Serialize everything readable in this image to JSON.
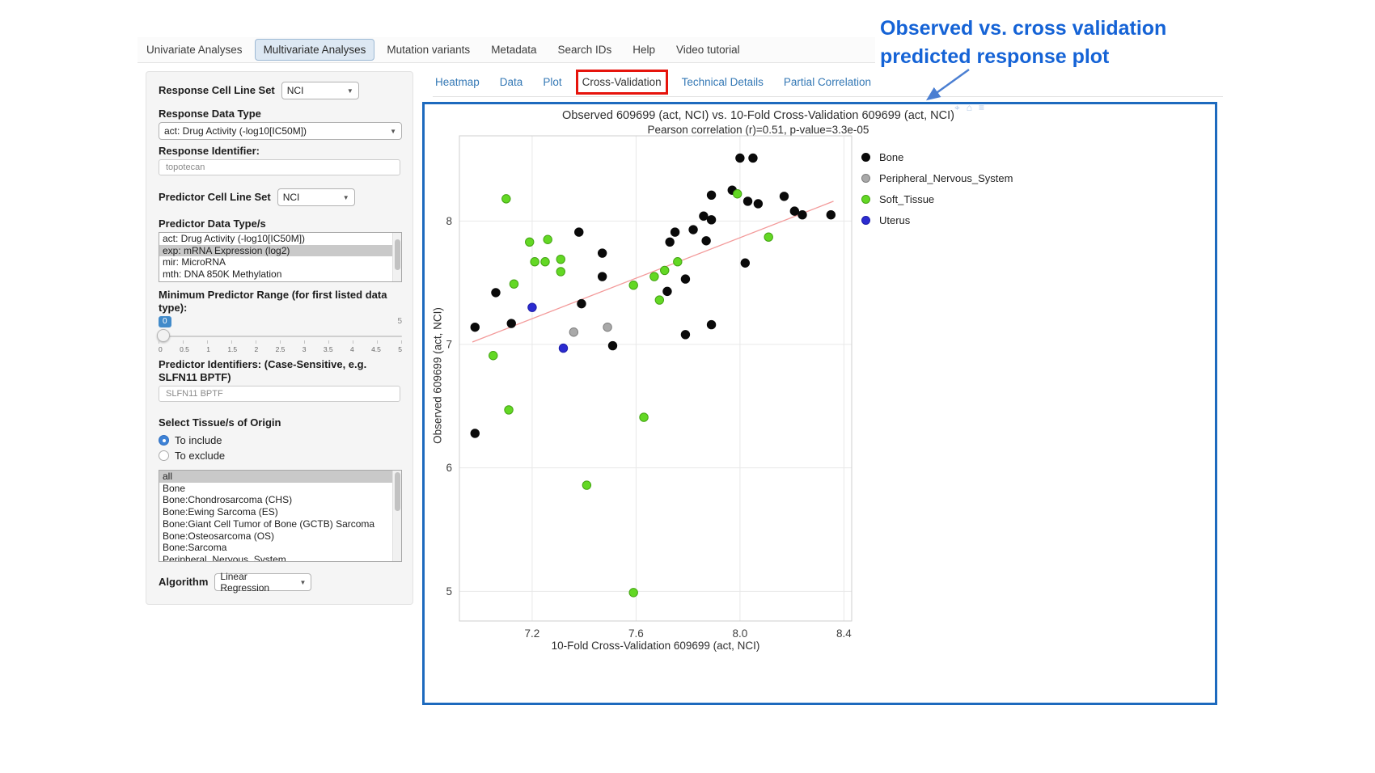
{
  "annotation": {
    "line1": "Observed vs. cross validation",
    "line2": "predicted response plot",
    "color": "#1563d6"
  },
  "navbar": {
    "tabs": [
      {
        "label": "Univariate Analyses",
        "active": false
      },
      {
        "label": "Multivariate Analyses",
        "active": true
      },
      {
        "label": "Mutation variants",
        "active": false
      },
      {
        "label": "Metadata",
        "active": false
      },
      {
        "label": "Search IDs",
        "active": false
      },
      {
        "label": "Help",
        "active": false
      },
      {
        "label": "Video tutorial",
        "active": false
      }
    ]
  },
  "sidebar": {
    "response_cell_line_set": {
      "label": "Response Cell Line Set",
      "value": "NCI"
    },
    "response_data_type": {
      "label": "Response Data Type",
      "value": "act: Drug Activity (-log10[IC50M])"
    },
    "response_identifier": {
      "label": "Response Identifier:",
      "value": "topotecan"
    },
    "predictor_cell_line_set": {
      "label": "Predictor Cell Line Set",
      "value": "NCI"
    },
    "predictor_data_types": {
      "label": "Predictor Data Type/s",
      "options": [
        "act: Drug Activity (-log10[IC50M])",
        "exp: mRNA Expression (log2)",
        "mir: MicroRNA",
        "mth: DNA 850K Methylation"
      ],
      "selected": "exp: mRNA Expression (log2)"
    },
    "min_predictor_range": {
      "label": "Minimum Predictor Range (for first listed data type):",
      "value": "0",
      "max_label": "5",
      "ticks": [
        "0",
        "0.5",
        "1",
        "1.5",
        "2",
        "2.5",
        "3",
        "3.5",
        "4",
        "4.5",
        "5"
      ]
    },
    "predictor_identifiers": {
      "label": "Predictor Identifiers: (Case-Sensitive, e.g. SLFN11 BPTF)",
      "value": "SLFN11 BPTF"
    },
    "tissue_origin": {
      "label": "Select Tissue/s of Origin",
      "radios": [
        {
          "label": "To include",
          "checked": true
        },
        {
          "label": "To exclude",
          "checked": false
        }
      ],
      "options": [
        "all",
        "Bone",
        "Bone:Chondrosarcoma (CHS)",
        "Bone:Ewing Sarcoma (ES)",
        "Bone:Giant Cell Tumor of Bone (GCTB) Sarcoma",
        "Bone:Osteosarcoma (OS)",
        "Bone:Sarcoma",
        "Peripheral_Nervous_System"
      ],
      "selected": "all"
    },
    "algorithm": {
      "label": "Algorithm",
      "value": "Linear Regression"
    }
  },
  "content_tabs": {
    "active": "Cross-Validation",
    "tabs": [
      {
        "label": "Heatmap"
      },
      {
        "label": "Data"
      },
      {
        "label": "Plot"
      },
      {
        "label": "Cross-Validation"
      },
      {
        "label": "Technical Details"
      },
      {
        "label": "Partial Correlation"
      }
    ]
  },
  "modebar": {
    "icons": [
      {
        "name": "crosshair-icon",
        "glyph": "⌖"
      },
      {
        "name": "home-icon",
        "glyph": "⌂"
      },
      {
        "name": "menu-icon",
        "glyph": "≡"
      }
    ]
  },
  "chart_data": {
    "type": "scatter",
    "title": "Observed 609699 (act, NCI) vs. 10-Fold Cross-Validation 609699 (act, NCI)",
    "subtitle": "Pearson correlation (r)=0.51, p-value=3.3e-05",
    "xlabel": "10-Fold Cross-Validation 609699 (act, NCI)",
    "ylabel": "Observed 609699 (act, NCI)",
    "xlim": [
      6.92,
      8.43
    ],
    "ylim": [
      4.76,
      8.69
    ],
    "x_ticks": [
      7.2,
      7.6,
      8.0,
      8.4
    ],
    "x_tick_labels": [
      "7.2",
      "7.6",
      "8.0",
      "8.4"
    ],
    "y_ticks": [
      5,
      6,
      7,
      8
    ],
    "y_tick_labels": [
      "5",
      "6",
      "7",
      "8"
    ],
    "grid": true,
    "legend_position": "right",
    "pearson_r": 0.51,
    "p_value": "3.3e-05",
    "trendline": {
      "color": "#f39a9a",
      "x": [
        6.97,
        8.36
      ],
      "y": [
        7.02,
        8.16
      ]
    },
    "series": [
      {
        "name": "Bone",
        "color": "#0a0a0a",
        "edge": "#0a0a0a",
        "points": [
          [
            8.0,
            8.51
          ],
          [
            8.05,
            8.51
          ],
          [
            7.97,
            8.25
          ],
          [
            7.89,
            8.21
          ],
          [
            8.03,
            8.16
          ],
          [
            8.07,
            8.14
          ],
          [
            8.17,
            8.2
          ],
          [
            8.21,
            8.08
          ],
          [
            8.24,
            8.05
          ],
          [
            8.35,
            8.05
          ],
          [
            7.86,
            8.04
          ],
          [
            7.89,
            8.01
          ],
          [
            7.38,
            7.91
          ],
          [
            7.75,
            7.91
          ],
          [
            7.82,
            7.93
          ],
          [
            7.87,
            7.84
          ],
          [
            7.73,
            7.83
          ],
          [
            7.47,
            7.74
          ],
          [
            8.02,
            7.66
          ],
          [
            7.47,
            7.55
          ],
          [
            7.79,
            7.53
          ],
          [
            7.72,
            7.43
          ],
          [
            7.06,
            7.42
          ],
          [
            7.39,
            7.33
          ],
          [
            7.12,
            7.17
          ],
          [
            6.98,
            7.14
          ],
          [
            7.89,
            7.16
          ],
          [
            7.79,
            7.08
          ],
          [
            7.51,
            6.99
          ],
          [
            6.98,
            6.28
          ]
        ]
      },
      {
        "name": "Peripheral_Nervous_System",
        "color": "#a9a9a9",
        "edge": "#7d7d7d",
        "points": [
          [
            7.36,
            7.1
          ],
          [
            7.49,
            7.14
          ]
        ]
      },
      {
        "name": "Soft_Tissue",
        "color": "#63d824",
        "edge": "#43a312",
        "points": [
          [
            7.1,
            8.18
          ],
          [
            7.99,
            8.22
          ],
          [
            8.11,
            7.87
          ],
          [
            7.26,
            7.85
          ],
          [
            7.19,
            7.83
          ],
          [
            7.31,
            7.69
          ],
          [
            7.21,
            7.67
          ],
          [
            7.25,
            7.67
          ],
          [
            7.76,
            7.67
          ],
          [
            7.71,
            7.6
          ],
          [
            7.31,
            7.59
          ],
          [
            7.67,
            7.55
          ],
          [
            7.13,
            7.49
          ],
          [
            7.59,
            7.48
          ],
          [
            7.69,
            7.36
          ],
          [
            7.05,
            6.91
          ],
          [
            7.11,
            6.47
          ],
          [
            7.63,
            6.41
          ],
          [
            7.41,
            5.86
          ],
          [
            7.59,
            4.99
          ]
        ]
      },
      {
        "name": "Uterus",
        "color": "#2b2bd0",
        "edge": "#1c1ca8",
        "points": [
          [
            7.2,
            7.3
          ],
          [
            7.32,
            6.97
          ]
        ]
      }
    ]
  }
}
